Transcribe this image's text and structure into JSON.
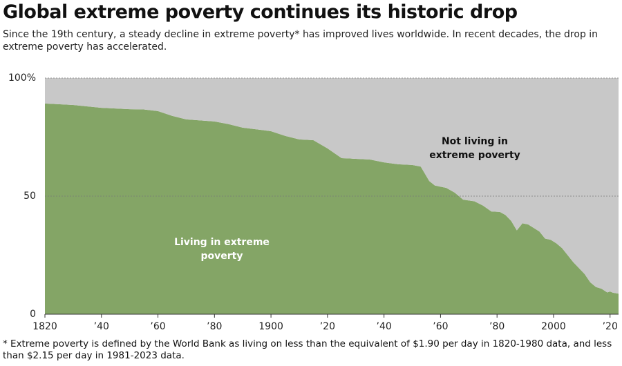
{
  "chart_data": {
    "type": "stacked-area",
    "title": "Global extreme poverty continues its historic drop",
    "subtitle": "Since the 19th century, a steady decline in extreme poverty* has improved lives worldwide. In recent decades, the drop in extreme poverty has accelerated.",
    "footnote": "* Extreme poverty is defined by the World Bank as living on less than the equivalent of $1.90 per day in 1820-1980 data, and less than $2.15 per day in 1981-2023 data.",
    "x": [
      1820,
      1830,
      1840,
      1850,
      1855,
      1860,
      1865,
      1870,
      1880,
      1885,
      1890,
      1900,
      1905,
      1910,
      1915,
      1920,
      1925,
      1930,
      1935,
      1940,
      1945,
      1950,
      1953,
      1956,
      1958,
      1962,
      1965,
      1968,
      1972,
      1975,
      1978,
      1981,
      1983,
      1985,
      1987,
      1989,
      1991,
      1993,
      1995,
      1997,
      1999,
      2001,
      2003,
      2005,
      2007,
      2009,
      2011,
      2013,
      2015,
      2017,
      2019,
      2020,
      2021,
      2023
    ],
    "series": [
      {
        "name": "Living in extreme poverty",
        "color": "#84a566",
        "values": [
          89.2,
          88.6,
          87.4,
          86.8,
          86.7,
          86,
          84,
          82.5,
          81.6,
          80.5,
          79,
          77.5,
          75.5,
          74,
          73.7,
          70.2,
          66.1,
          65.8,
          65.5,
          64.3,
          63.5,
          63.2,
          62.5,
          56.4,
          54.5,
          53.5,
          51.5,
          48.5,
          47.8,
          46,
          43.5,
          43.3,
          42,
          39.5,
          35.5,
          38.5,
          38,
          36.5,
          35,
          32,
          31.5,
          30,
          28,
          25,
          22,
          19.5,
          17,
          13.5,
          11.5,
          10.8,
          9.2,
          9.6,
          9.1,
          8.7
        ]
      },
      {
        "name": "Not living in extreme poverty",
        "color": "#c8c8c8",
        "values": [
          10.8,
          11.4,
          12.6,
          13.2,
          13.3,
          14,
          16,
          17.5,
          18.4,
          19.5,
          21,
          22.5,
          24.5,
          26,
          26.3,
          29.8,
          33.9,
          34.2,
          34.5,
          35.7,
          36.5,
          36.8,
          37.5,
          43.6,
          45.5,
          46.5,
          48.5,
          51.5,
          52.2,
          54,
          56.5,
          56.7,
          58,
          60.5,
          64.5,
          61.5,
          62,
          63.5,
          65,
          68,
          68.5,
          70,
          72,
          75,
          78,
          80.5,
          83,
          86.5,
          88.5,
          89.2,
          90.8,
          90.4,
          90.9,
          91.3
        ]
      }
    ],
    "xlim": [
      1820,
      2023
    ],
    "xticks": [
      1820,
      {
        "value": 1840,
        "label": "’40"
      },
      {
        "value": 1860,
        "label": "’60"
      },
      {
        "value": 1880,
        "label": "’80"
      },
      1900,
      {
        "value": 1920,
        "label": "’20"
      },
      {
        "value": 1940,
        "label": "’40"
      },
      {
        "value": 1960,
        "label": "’60"
      },
      {
        "value": 1980,
        "label": "’80"
      },
      2000,
      {
        "value": 2020,
        "label": "’20"
      }
    ],
    "ylim": [
      0,
      100
    ],
    "yticks": [
      0,
      50,
      {
        "value": 100,
        "label": "100%"
      }
    ],
    "grid": true
  }
}
